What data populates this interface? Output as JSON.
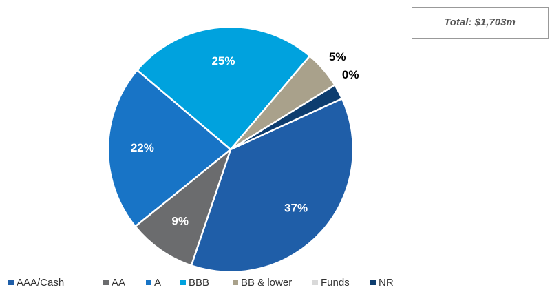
{
  "chart_data": {
    "type": "pie",
    "annotation": "Total: $1,703m",
    "categories": [
      "AAA/Cash",
      "AA",
      "A",
      "BBB",
      "BB & lower",
      "Funds",
      "NR"
    ],
    "values": [
      37,
      9,
      22,
      25,
      5,
      0,
      2
    ],
    "value_labels": [
      "37%",
      "9%",
      "22%",
      "25%",
      "5%",
      "0%",
      null
    ],
    "colors": [
      "#1f5ea8",
      "#6b6c6e",
      "#1874c6",
      "#00a2de",
      "#a9a18b",
      "#d9d9d9",
      "#0d3d6f"
    ],
    "legend": "bottom"
  }
}
